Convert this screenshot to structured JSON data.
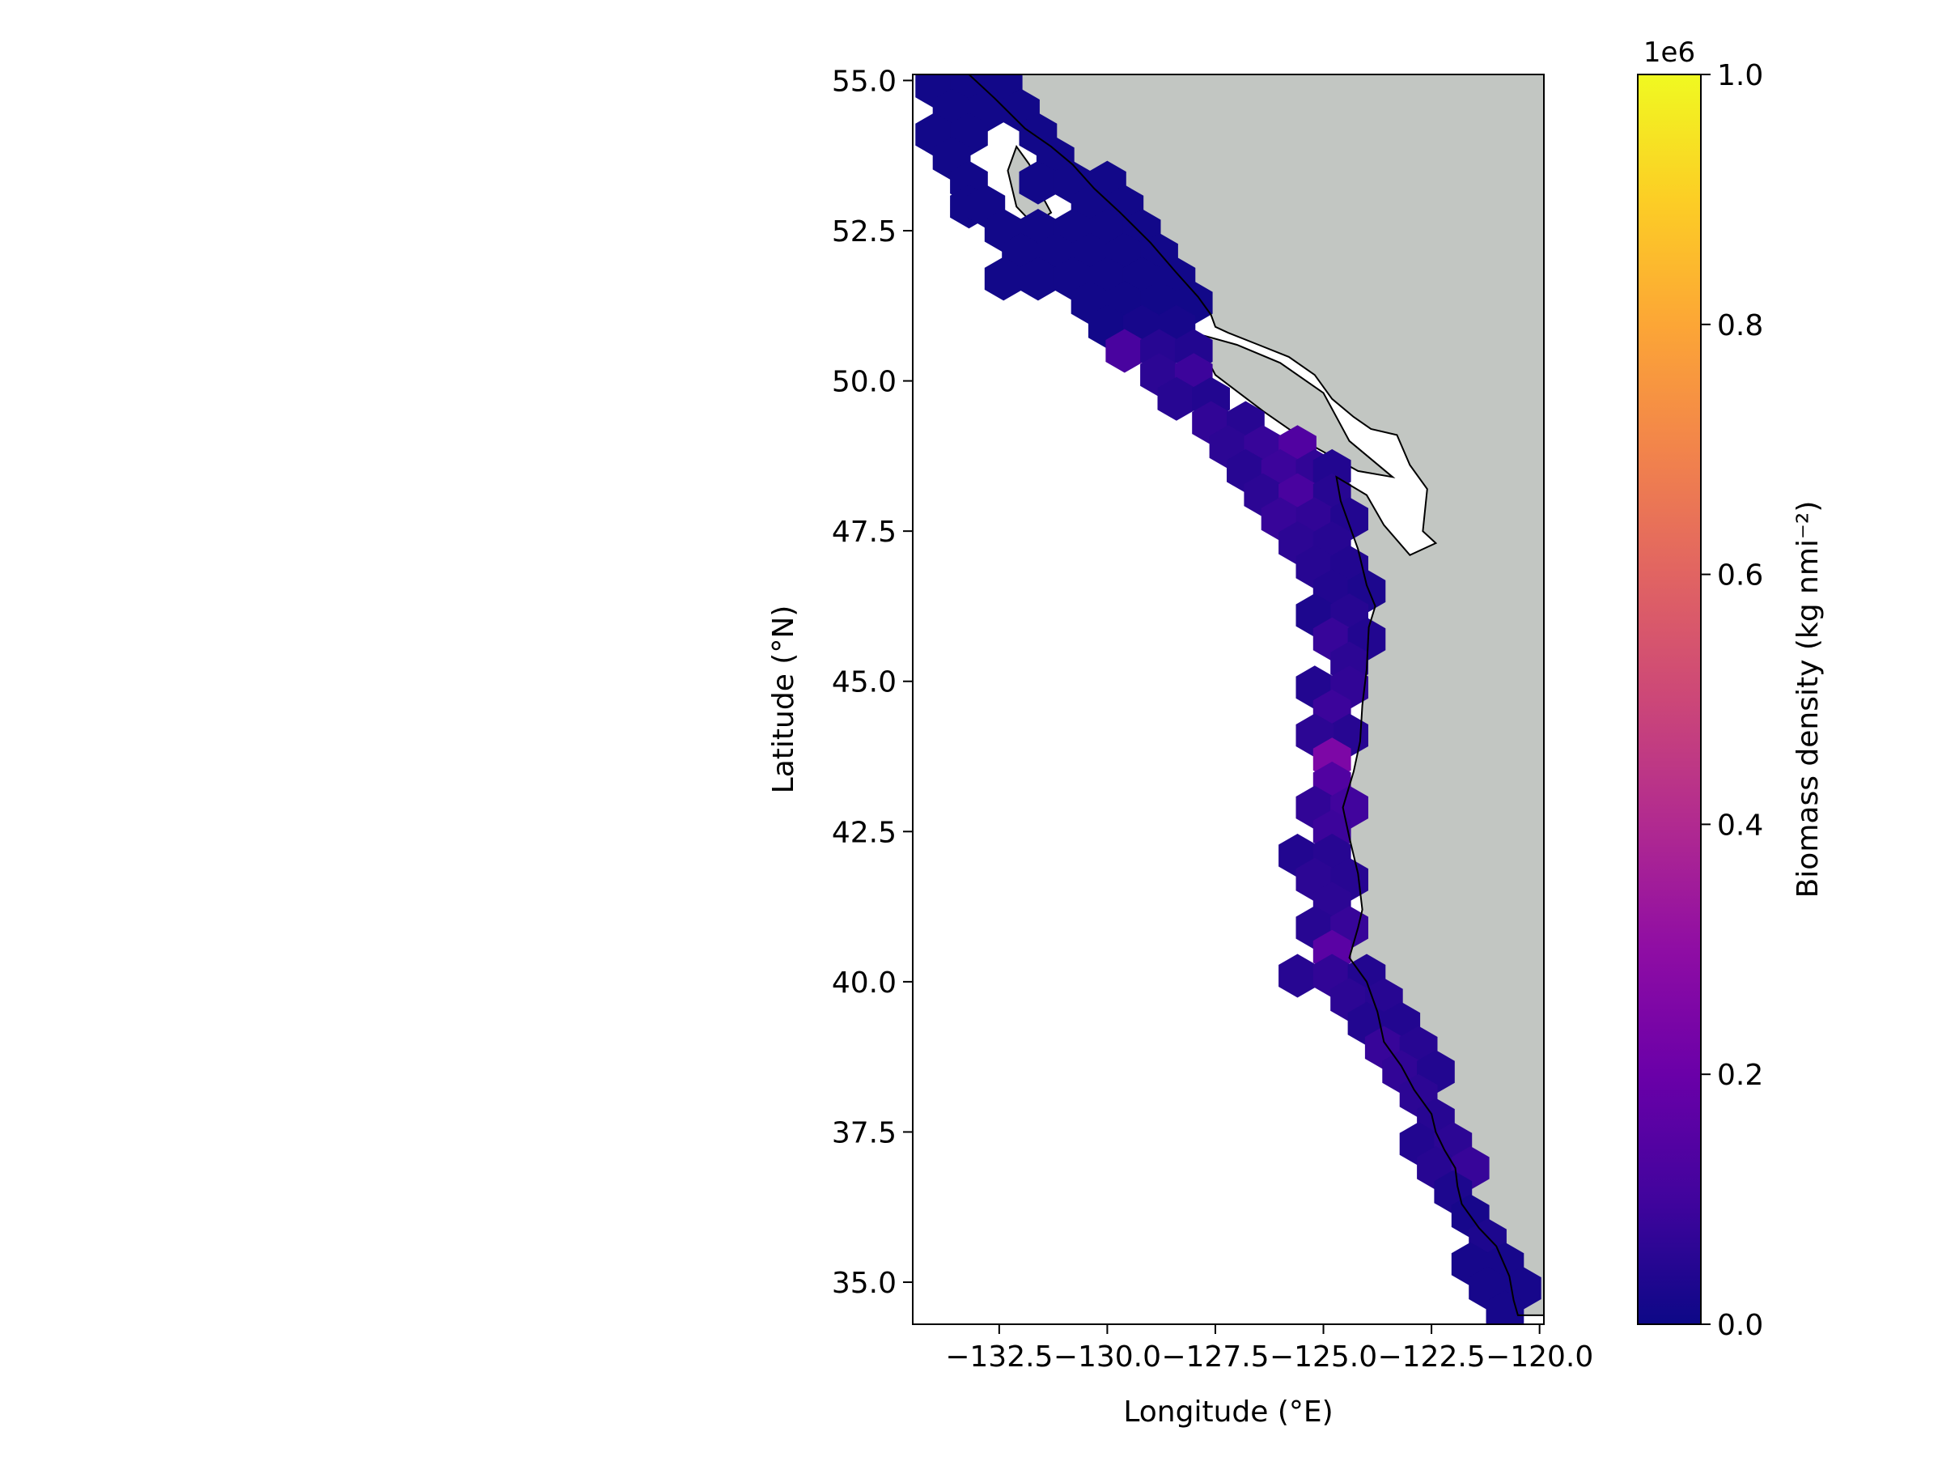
{
  "map": {
    "colormap": "plasma",
    "colors": {
      "land": "#c2c6c2",
      "ocean": "#ffffff",
      "coastline": "#000000",
      "hex_low": "#0d0887",
      "hex_mid": "#7e03a8",
      "hex_high": "#f0f921"
    },
    "x_axis": {
      "label": "Longitude (°E)",
      "range": [
        -134.5,
        -119.9
      ],
      "ticks": [
        -132.5,
        -130.0,
        -127.5,
        -125.0,
        -122.5,
        -120.0
      ],
      "tick_labels": [
        "−132.5",
        "−130.0",
        "−127.5",
        "−125.0",
        "−122.5",
        "−120.0"
      ]
    },
    "y_axis": {
      "label": "Latitude (°N)",
      "range": [
        34.3,
        55.1
      ],
      "ticks": [
        35.0,
        37.5,
        40.0,
        42.5,
        45.0,
        47.5,
        50.0,
        52.5,
        55.0
      ],
      "tick_labels": [
        "35.0",
        "37.5",
        "40.0",
        "42.5",
        "45.0",
        "47.5",
        "50.0",
        "52.5",
        "55.0"
      ]
    },
    "colorbar": {
      "label": "Biomass density (kg nmi⁻²)",
      "offset_text": "1e6",
      "range": [
        0,
        1.0
      ],
      "ticks": [
        0.0,
        0.2,
        0.4,
        0.6,
        0.8,
        1.0
      ],
      "tick_labels": [
        "0.0",
        "0.2",
        "0.4",
        "0.6",
        "0.8",
        "1.0"
      ]
    },
    "coastline_lonlat": [
      [
        -133.2,
        55.1
      ],
      [
        -132.6,
        54.7
      ],
      [
        -131.9,
        54.2
      ],
      [
        -131.3,
        53.9
      ],
      [
        -130.8,
        53.6
      ],
      [
        -130.3,
        53.2
      ],
      [
        -129.7,
        52.8
      ],
      [
        -129.0,
        52.3
      ],
      [
        -128.4,
        51.8
      ],
      [
        -127.9,
        51.4
      ],
      [
        -127.6,
        51.1
      ],
      [
        -127.5,
        50.9
      ],
      [
        -127.2,
        50.8
      ],
      [
        -126.5,
        50.6
      ],
      [
        -125.8,
        50.4
      ],
      [
        -125.2,
        50.1
      ],
      [
        -124.8,
        49.7
      ],
      [
        -124.3,
        49.4
      ],
      [
        -123.9,
        49.2
      ],
      [
        -123.3,
        49.1
      ],
      [
        -123.0,
        48.6
      ],
      [
        -122.6,
        48.2
      ],
      [
        -122.7,
        47.5
      ],
      [
        -122.4,
        47.3
      ],
      [
        -123.0,
        47.1
      ],
      [
        -123.6,
        47.6
      ],
      [
        -124.0,
        48.1
      ],
      [
        -124.7,
        48.4
      ],
      [
        -124.6,
        48.0
      ],
      [
        -124.2,
        47.2
      ],
      [
        -124.0,
        46.6
      ],
      [
        -123.8,
        46.25
      ],
      [
        -123.95,
        45.9
      ],
      [
        -124.0,
        45.2
      ],
      [
        -124.1,
        44.6
      ],
      [
        -124.15,
        44.0
      ],
      [
        -124.3,
        43.5
      ],
      [
        -124.55,
        42.9
      ],
      [
        -124.4,
        42.4
      ],
      [
        -124.2,
        41.8
      ],
      [
        -124.1,
        41.2
      ],
      [
        -124.2,
        40.9
      ],
      [
        -124.4,
        40.4
      ],
      [
        -124.0,
        40.0
      ],
      [
        -123.75,
        39.5
      ],
      [
        -123.6,
        39.0
      ],
      [
        -123.2,
        38.6
      ],
      [
        -122.9,
        38.2
      ],
      [
        -122.5,
        37.8
      ],
      [
        -122.4,
        37.5
      ],
      [
        -122.2,
        37.2
      ],
      [
        -121.95,
        36.9
      ],
      [
        -121.9,
        36.6
      ],
      [
        -121.8,
        36.3
      ],
      [
        -121.4,
        35.9
      ],
      [
        -121.0,
        35.6
      ],
      [
        -120.7,
        35.1
      ],
      [
        -120.6,
        34.7
      ],
      [
        -120.5,
        34.45
      ],
      [
        -119.9,
        34.45
      ]
    ],
    "land_patches_lonlat": [
      [
        [
          -132.1,
          53.9
        ],
        [
          -131.8,
          53.6
        ],
        [
          -131.6,
          53.2
        ],
        [
          -131.3,
          52.8
        ],
        [
          -131.7,
          52.6
        ],
        [
          -132.1,
          52.9
        ],
        [
          -132.3,
          53.5
        ]
      ],
      [
        [
          -128.0,
          50.8
        ],
        [
          -127.0,
          50.6
        ],
        [
          -126.0,
          50.3
        ],
        [
          -125.0,
          49.8
        ],
        [
          -124.4,
          49.0
        ],
        [
          -123.4,
          48.4
        ],
        [
          -124.2,
          48.5
        ],
        [
          -125.2,
          48.9
        ],
        [
          -126.4,
          49.5
        ],
        [
          -127.5,
          50.1
        ]
      ]
    ],
    "hex_cells": [
      {
        "lon": -134.0,
        "lat": 54.9,
        "v": 0.01
      },
      {
        "lon": -133.2,
        "lat": 54.9,
        "v": 0.01
      },
      {
        "lon": -132.4,
        "lat": 54.9,
        "v": 0.01
      },
      {
        "lon": -133.6,
        "lat": 54.5,
        "v": 0.01
      },
      {
        "lon": -132.8,
        "lat": 54.5,
        "v": 0.01
      },
      {
        "lon": -132.0,
        "lat": 54.5,
        "v": 0.01
      },
      {
        "lon": -134.0,
        "lat": 54.1,
        "v": 0.01
      },
      {
        "lon": -133.2,
        "lat": 54.1,
        "v": 0.01
      },
      {
        "lon": -131.6,
        "lat": 54.1,
        "v": 0.01
      },
      {
        "lon": -133.6,
        "lat": 53.7,
        "v": 0.01
      },
      {
        "lon": -131.2,
        "lat": 53.7,
        "v": 0.01
      },
      {
        "lon": -133.2,
        "lat": 53.3,
        "v": 0.01
      },
      {
        "lon": -131.6,
        "lat": 53.3,
        "v": 0.01
      },
      {
        "lon": -130.8,
        "lat": 53.3,
        "v": 0.01
      },
      {
        "lon": -130.0,
        "lat": 53.3,
        "v": 0.01
      },
      {
        "lon": -133.2,
        "lat": 52.9,
        "v": 0.01
      },
      {
        "lon": -132.8,
        "lat": 52.9,
        "v": 0.01
      },
      {
        "lon": -130.4,
        "lat": 52.9,
        "v": 0.01
      },
      {
        "lon": -129.6,
        "lat": 52.9,
        "v": 0.01
      },
      {
        "lon": -132.4,
        "lat": 52.5,
        "v": 0.01
      },
      {
        "lon": -131.6,
        "lat": 52.5,
        "v": 0.01
      },
      {
        "lon": -130.8,
        "lat": 52.5,
        "v": 0.01
      },
      {
        "lon": -130.0,
        "lat": 52.5,
        "v": 0.01
      },
      {
        "lon": -129.2,
        "lat": 52.5,
        "v": 0.01
      },
      {
        "lon": -132.0,
        "lat": 52.1,
        "v": 0.01
      },
      {
        "lon": -131.2,
        "lat": 52.1,
        "v": 0.01
      },
      {
        "lon": -130.4,
        "lat": 52.1,
        "v": 0.01
      },
      {
        "lon": -129.6,
        "lat": 52.1,
        "v": 0.01
      },
      {
        "lon": -128.8,
        "lat": 52.1,
        "v": 0.01
      },
      {
        "lon": -132.4,
        "lat": 51.7,
        "v": 0.01
      },
      {
        "lon": -131.6,
        "lat": 51.7,
        "v": 0.01
      },
      {
        "lon": -130.8,
        "lat": 51.7,
        "v": 0.01
      },
      {
        "lon": -130.0,
        "lat": 51.7,
        "v": 0.01
      },
      {
        "lon": -129.2,
        "lat": 51.7,
        "v": 0.01
      },
      {
        "lon": -128.4,
        "lat": 51.7,
        "v": 0.01
      },
      {
        "lon": -130.4,
        "lat": 51.3,
        "v": 0.01
      },
      {
        "lon": -129.6,
        "lat": 51.3,
        "v": 0.01
      },
      {
        "lon": -128.8,
        "lat": 51.3,
        "v": 0.01
      },
      {
        "lon": -128.0,
        "lat": 51.3,
        "v": 0.01
      },
      {
        "lon": -130.0,
        "lat": 50.9,
        "v": 0.01
      },
      {
        "lon": -129.2,
        "lat": 50.9,
        "v": 0.02
      },
      {
        "lon": -128.4,
        "lat": 50.9,
        "v": 0.02
      },
      {
        "lon": -129.6,
        "lat": 50.5,
        "v": 0.12
      },
      {
        "lon": -128.8,
        "lat": 50.5,
        "v": 0.05
      },
      {
        "lon": -128.0,
        "lat": 50.5,
        "v": 0.04
      },
      {
        "lon": -128.8,
        "lat": 50.1,
        "v": 0.06
      },
      {
        "lon": -128.0,
        "lat": 50.1,
        "v": 0.09
      },
      {
        "lon": -128.4,
        "lat": 49.7,
        "v": 0.05
      },
      {
        "lon": -127.6,
        "lat": 49.7,
        "v": 0.04
      },
      {
        "lon": -127.6,
        "lat": 49.3,
        "v": 0.07
      },
      {
        "lon": -126.8,
        "lat": 49.3,
        "v": 0.05
      },
      {
        "lon": -127.2,
        "lat": 48.9,
        "v": 0.06
      },
      {
        "lon": -126.4,
        "lat": 48.9,
        "v": 0.08
      },
      {
        "lon": -125.6,
        "lat": 48.9,
        "v": 0.14
      },
      {
        "lon": -126.8,
        "lat": 48.5,
        "v": 0.05
      },
      {
        "lon": -126.0,
        "lat": 48.5,
        "v": 0.09
      },
      {
        "lon": -125.2,
        "lat": 48.5,
        "v": 0.07
      },
      {
        "lon": -124.8,
        "lat": 48.5,
        "v": 0.04
      },
      {
        "lon": -126.4,
        "lat": 48.1,
        "v": 0.06
      },
      {
        "lon": -125.6,
        "lat": 48.1,
        "v": 0.12
      },
      {
        "lon": -124.8,
        "lat": 48.1,
        "v": 0.05
      },
      {
        "lon": -126.0,
        "lat": 47.7,
        "v": 0.08
      },
      {
        "lon": -125.2,
        "lat": 47.7,
        "v": 0.07
      },
      {
        "lon": -124.4,
        "lat": 47.7,
        "v": 0.04
      },
      {
        "lon": -125.6,
        "lat": 47.3,
        "v": 0.06
      },
      {
        "lon": -124.8,
        "lat": 47.3,
        "v": 0.05
      },
      {
        "lon": -125.2,
        "lat": 46.9,
        "v": 0.05
      },
      {
        "lon": -124.4,
        "lat": 46.9,
        "v": 0.04
      },
      {
        "lon": -124.8,
        "lat": 46.5,
        "v": 0.04
      },
      {
        "lon": -124.0,
        "lat": 46.5,
        "v": 0.03
      },
      {
        "lon": -125.2,
        "lat": 46.1,
        "v": 0.03
      },
      {
        "lon": -124.4,
        "lat": 46.1,
        "v": 0.05
      },
      {
        "lon": -124.8,
        "lat": 45.7,
        "v": 0.08
      },
      {
        "lon": -124.0,
        "lat": 45.7,
        "v": 0.04
      },
      {
        "lon": -124.4,
        "lat": 45.3,
        "v": 0.06
      },
      {
        "lon": -125.2,
        "lat": 44.9,
        "v": 0.04
      },
      {
        "lon": -124.4,
        "lat": 44.9,
        "v": 0.07
      },
      {
        "lon": -124.8,
        "lat": 44.5,
        "v": 0.09
      },
      {
        "lon": -124.4,
        "lat": 44.1,
        "v": 0.05
      },
      {
        "lon": -125.2,
        "lat": 44.1,
        "v": 0.06
      },
      {
        "lon": -124.8,
        "lat": 43.7,
        "v": 0.25
      },
      {
        "lon": -124.8,
        "lat": 43.3,
        "v": 0.14
      },
      {
        "lon": -125.2,
        "lat": 42.9,
        "v": 0.07
      },
      {
        "lon": -124.4,
        "lat": 42.9,
        "v": 0.1
      },
      {
        "lon": -124.8,
        "lat": 42.5,
        "v": 0.09
      },
      {
        "lon": -125.6,
        "lat": 42.1,
        "v": 0.04
      },
      {
        "lon": -124.8,
        "lat": 42.1,
        "v": 0.05
      },
      {
        "lon": -125.2,
        "lat": 41.7,
        "v": 0.06
      },
      {
        "lon": -124.4,
        "lat": 41.7,
        "v": 0.05
      },
      {
        "lon": -124.8,
        "lat": 41.3,
        "v": 0.06
      },
      {
        "lon": -125.2,
        "lat": 40.9,
        "v": 0.05
      },
      {
        "lon": -124.4,
        "lat": 40.9,
        "v": 0.08
      },
      {
        "lon": -124.8,
        "lat": 40.5,
        "v": 0.16
      },
      {
        "lon": -125.6,
        "lat": 40.1,
        "v": 0.05
      },
      {
        "lon": -124.8,
        "lat": 40.1,
        "v": 0.07
      },
      {
        "lon": -124.0,
        "lat": 40.1,
        "v": 0.04
      },
      {
        "lon": -124.4,
        "lat": 39.7,
        "v": 0.06
      },
      {
        "lon": -123.6,
        "lat": 39.7,
        "v": 0.05
      },
      {
        "lon": -124.0,
        "lat": 39.3,
        "v": 0.04
      },
      {
        "lon": -123.2,
        "lat": 39.3,
        "v": 0.04
      },
      {
        "lon": -123.6,
        "lat": 38.9,
        "v": 0.08
      },
      {
        "lon": -122.8,
        "lat": 38.9,
        "v": 0.05
      },
      {
        "lon": -123.2,
        "lat": 38.5,
        "v": 0.07
      },
      {
        "lon": -122.4,
        "lat": 38.5,
        "v": 0.04
      },
      {
        "lon": -122.8,
        "lat": 38.1,
        "v": 0.06
      },
      {
        "lon": -122.4,
        "lat": 37.7,
        "v": 0.05
      },
      {
        "lon": -122.8,
        "lat": 37.3,
        "v": 0.04
      },
      {
        "lon": -122.0,
        "lat": 37.3,
        "v": 0.06
      },
      {
        "lon": -122.4,
        "lat": 36.9,
        "v": 0.05
      },
      {
        "lon": -121.6,
        "lat": 36.9,
        "v": 0.08
      },
      {
        "lon": -122.0,
        "lat": 36.5,
        "v": 0.03
      },
      {
        "lon": -121.6,
        "lat": 36.1,
        "v": 0.02
      },
      {
        "lon": -121.2,
        "lat": 35.7,
        "v": 0.03
      },
      {
        "lon": -121.6,
        "lat": 35.3,
        "v": 0.02
      },
      {
        "lon": -120.8,
        "lat": 35.3,
        "v": 0.02
      },
      {
        "lon": -121.2,
        "lat": 34.9,
        "v": 0.02
      },
      {
        "lon": -120.4,
        "lat": 34.9,
        "v": 0.02
      },
      {
        "lon": -120.8,
        "lat": 34.5,
        "v": 0.02
      }
    ]
  }
}
